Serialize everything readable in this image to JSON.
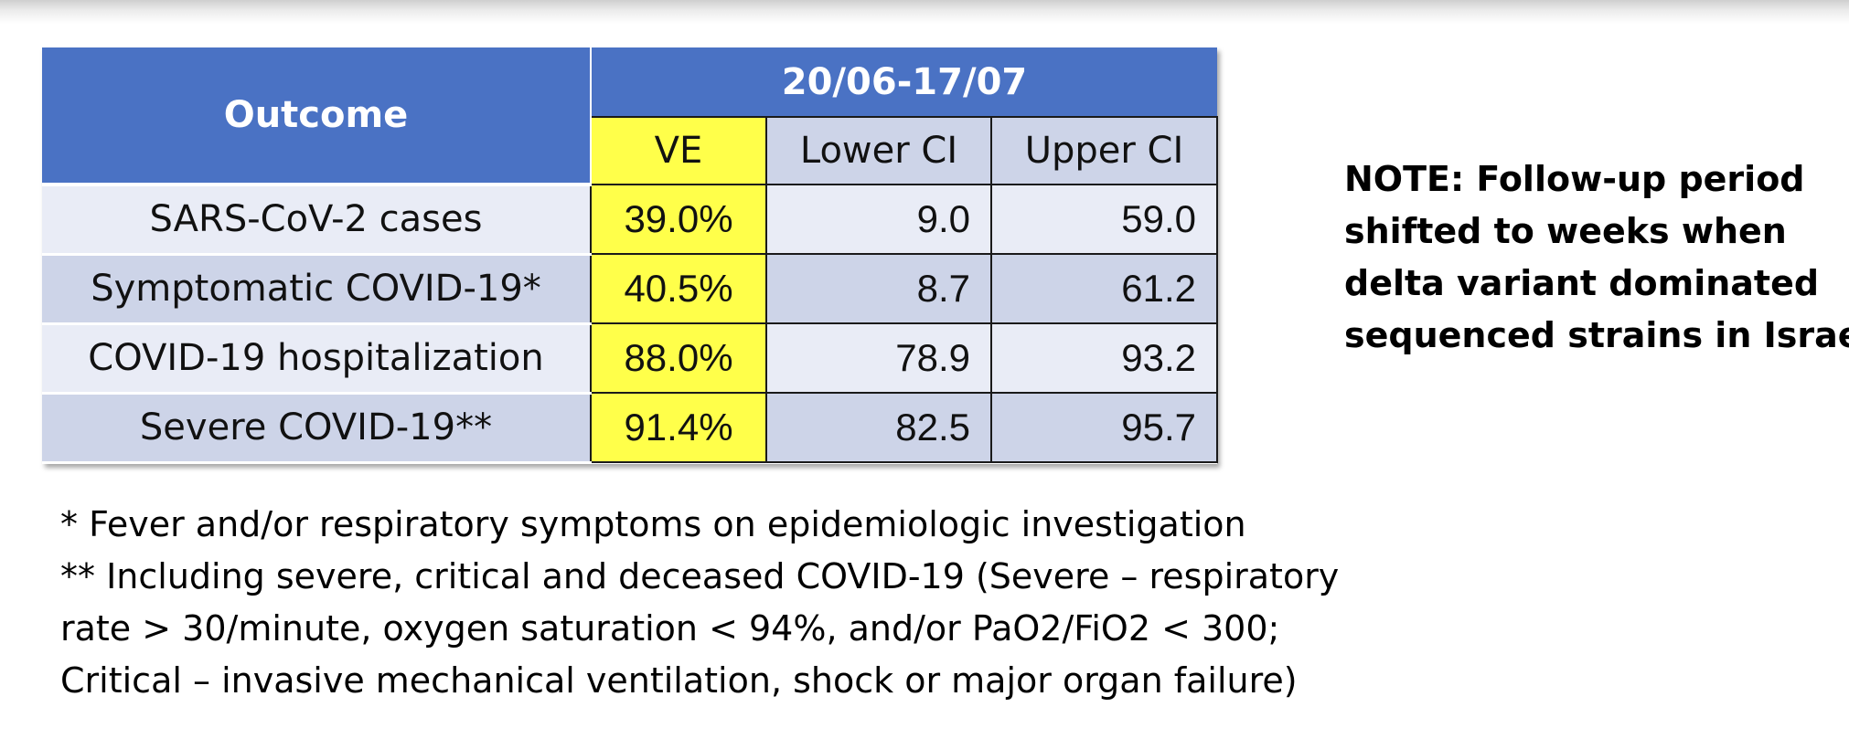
{
  "table": {
    "outcome_header": "Outcome",
    "period_header": "20/06-17/07",
    "sub_headers": [
      "VE",
      "Lower CI",
      "Upper CI"
    ],
    "rows": [
      {
        "outcome": "SARS-CoV-2 cases",
        "ve": "39.0%",
        "lower_ci": "9.0",
        "upper_ci": "59.0"
      },
      {
        "outcome": "Symptomatic COVID-19*",
        "ve": "40.5%",
        "lower_ci": "8.7",
        "upper_ci": "61.2"
      },
      {
        "outcome": "COVID-19 hospitalization",
        "ve": "88.0%",
        "lower_ci": "78.9",
        "upper_ci": "93.2"
      },
      {
        "outcome": "Severe COVID-19**",
        "ve": "91.4%",
        "lower_ci": "82.5",
        "upper_ci": "95.7"
      }
    ]
  },
  "note": {
    "lines": [
      "NOTE: Follow-up period",
      "shifted to weeks when",
      "delta variant dominated",
      "sequenced strains in Israel"
    ]
  },
  "footnotes": {
    "lines": [
      "* Fever and/or respiratory symptoms on epidemiologic investigation",
      "** Including severe, critical and deceased COVID-19 (Severe – respiratory",
      "rate > 30/minute, oxygen saturation < 94%, and/or PaO2/FiO2 < 300;",
      "Critical – invasive mechanical ventilation, shock or major organ failure)"
    ]
  },
  "colors": {
    "header_blue": "#4a72c4",
    "ve_yellow": "#ffff4a",
    "row_light": "#e9ecf6",
    "row_dark": "#cdd4e8"
  }
}
